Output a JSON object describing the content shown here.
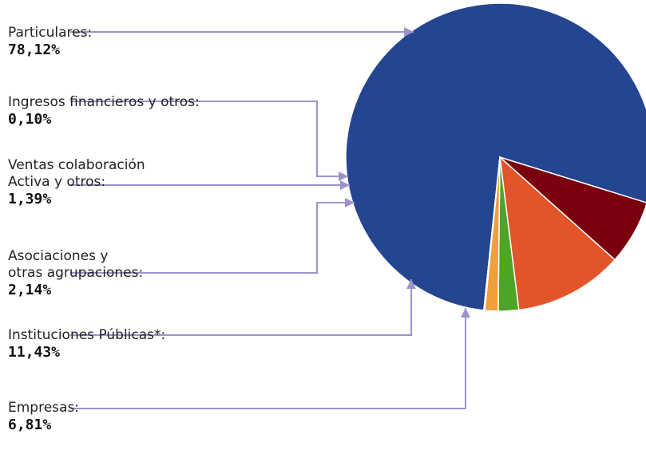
{
  "chart_data": {
    "type": "pie",
    "title": "",
    "slices": [
      {
        "label": "Particulares",
        "value": 78.12,
        "value_label": "78,12%",
        "color": "#24458f"
      },
      {
        "label": "Ingresos financieros y otros:",
        "value": 0.1,
        "value_label": "0,10%",
        "color": "#3a3f52"
      },
      {
        "label": "Ventas colaboración Activa y otros:",
        "value": 1.39,
        "value_label": "1,39%",
        "color": "#f0a03a"
      },
      {
        "label": "Asociaciones y otras agrupaciones:",
        "value": 2.14,
        "value_label": "2,14%",
        "color": "#4ea424"
      },
      {
        "label": "Instituciones Públicas*:",
        "value": 11.43,
        "value_label": "11,43%",
        "color": "#e2542a"
      },
      {
        "label": "Empresas:",
        "value": 6.81,
        "value_label": "6,81%",
        "color": "#7a0010"
      }
    ],
    "connector_color": "#9b93cc"
  },
  "labels": [
    {
      "text": "Particulares:",
      "value": "78,12%"
    },
    {
      "text": "Ingresos financieros y otros:",
      "value": "0,10%"
    },
    {
      "text": "Ventas colaboración\nActiva y otros:",
      "value": "1,39%"
    },
    {
      "text": "Asociaciones y\notras agrupaciones:",
      "value": "2,14%"
    },
    {
      "text": "Instituciones Públicas*:",
      "value": "11,43%"
    },
    {
      "text": "Empresas:",
      "value": "6,81%"
    }
  ]
}
